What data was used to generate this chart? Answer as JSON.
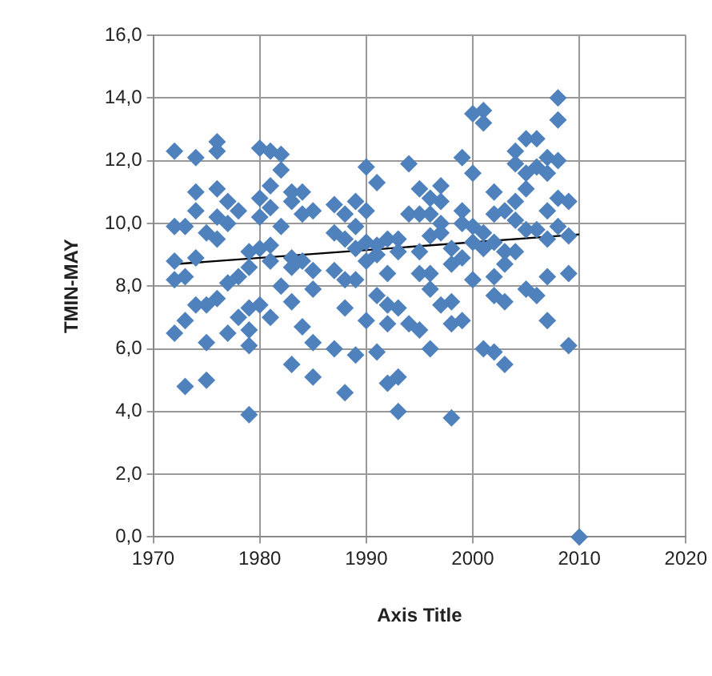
{
  "chart_data": {
    "type": "scatter",
    "xlabel": "Axis Title",
    "ylabel": "TMIN-MAY",
    "xlim": [
      1970,
      2020
    ],
    "xticks": [
      1970,
      1980,
      1990,
      2000,
      2010,
      2020
    ],
    "ylim": [
      0,
      16
    ],
    "yticks": [
      {
        "value": 0,
        "label": "0,0"
      },
      {
        "value": 2,
        "label": "2,0"
      },
      {
        "value": 4,
        "label": "4,0"
      },
      {
        "value": 6,
        "label": "6,0"
      },
      {
        "value": 8,
        "label": "8,0"
      },
      {
        "value": 10,
        "label": "10,0"
      },
      {
        "value": 12,
        "label": "12,0"
      },
      {
        "value": 14,
        "label": "14,0"
      },
      {
        "value": 16,
        "label": "16,0"
      }
    ],
    "grid": true,
    "marker": "diamond",
    "series": [
      {
        "type": "scatter",
        "color": "#4f81bd",
        "x": [
          1972,
          1972,
          1972,
          1972,
          1972,
          1973,
          1973,
          1973,
          1973,
          1974,
          1974,
          1974,
          1974,
          1974,
          1975,
          1975,
          1975,
          1975,
          1976,
          1976,
          1976,
          1976,
          1976,
          1976,
          1977,
          1977,
          1977,
          1977,
          1978,
          1978,
          1978,
          1979,
          1979,
          1979,
          1979,
          1979,
          1979,
          1980,
          1980,
          1980,
          1980,
          1980,
          1981,
          1981,
          1981,
          1981,
          1981,
          1981,
          1982,
          1982,
          1982,
          1982,
          1983,
          1983,
          1983,
          1983,
          1983,
          1983,
          1984,
          1984,
          1984,
          1984,
          1985,
          1985,
          1985,
          1985,
          1985,
          1987,
          1987,
          1987,
          1987,
          1988,
          1988,
          1988,
          1988,
          1988,
          1989,
          1989,
          1989,
          1989,
          1989,
          1990,
          1990,
          1990,
          1990,
          1990,
          1991,
          1991,
          1991,
          1991,
          1991,
          1992,
          1992,
          1992,
          1992,
          1992,
          1993,
          1993,
          1993,
          1993,
          1993,
          1994,
          1994,
          1994,
          1995,
          1995,
          1995,
          1995,
          1995,
          1996,
          1996,
          1996,
          1996,
          1996,
          1996,
          1997,
          1997,
          1997,
          1997,
          1997,
          1998,
          1998,
          1998,
          1998,
          1998,
          1999,
          1999,
          1999,
          1999,
          1999,
          2000,
          2000,
          2000,
          2000,
          2000,
          2001,
          2001,
          2001,
          2001,
          2001,
          2002,
          2002,
          2002,
          2002,
          2002,
          2002,
          2003,
          2003,
          2003,
          2003,
          2003,
          2004,
          2004,
          2004,
          2004,
          2004,
          2005,
          2005,
          2005,
          2005,
          2005,
          2006,
          2006,
          2006,
          2006,
          2007,
          2007,
          2007,
          2007,
          2007,
          2007,
          2008,
          2008,
          2008,
          2008,
          2008,
          2009,
          2009,
          2009,
          2009,
          2010
        ],
        "values": [
          12.3,
          9.9,
          8.8,
          8.2,
          6.5,
          9.9,
          8.3,
          6.9,
          4.8,
          12.1,
          11.0,
          10.4,
          8.9,
          7.4,
          9.7,
          7.4,
          6.2,
          5.0,
          12.6,
          12.3,
          11.1,
          10.2,
          9.5,
          7.6,
          10.7,
          10.0,
          8.1,
          6.5,
          10.4,
          8.3,
          7.0,
          9.1,
          8.6,
          7.3,
          6.6,
          6.1,
          3.9,
          12.4,
          10.8,
          10.2,
          9.2,
          7.4,
          12.3,
          11.2,
          10.5,
          9.3,
          8.8,
          7.0,
          12.2,
          11.7,
          9.9,
          8.0,
          11.0,
          10.7,
          8.9,
          8.6,
          7.5,
          5.5,
          11.0,
          10.3,
          8.8,
          6.7,
          10.4,
          8.5,
          7.9,
          6.2,
          5.1,
          10.6,
          9.7,
          8.5,
          6.0,
          10.3,
          9.5,
          8.2,
          7.3,
          4.6,
          10.7,
          9.9,
          9.2,
          8.2,
          5.8,
          11.8,
          10.4,
          9.4,
          8.8,
          6.9,
          11.3,
          9.3,
          9.0,
          7.7,
          5.9,
          9.5,
          8.4,
          7.4,
          6.8,
          4.9,
          9.5,
          9.1,
          7.3,
          5.1,
          4.0,
          11.9,
          10.3,
          6.8,
          11.1,
          10.3,
          9.1,
          8.4,
          6.6,
          10.8,
          10.3,
          9.6,
          8.4,
          7.9,
          6.0,
          11.2,
          10.7,
          10.0,
          9.7,
          7.4,
          9.2,
          8.7,
          7.5,
          6.8,
          3.8,
          12.1,
          10.4,
          10.0,
          8.9,
          6.9,
          13.5,
          11.6,
          9.9,
          9.4,
          8.2,
          13.6,
          13.2,
          9.7,
          9.2,
          6.0,
          11.0,
          10.3,
          9.4,
          8.3,
          7.7,
          5.9,
          10.4,
          9.1,
          8.7,
          7.5,
          5.5,
          12.3,
          11.9,
          10.7,
          10.1,
          9.1,
          12.7,
          11.6,
          11.1,
          9.8,
          7.9,
          12.7,
          11.8,
          9.8,
          7.7,
          12.1,
          11.6,
          10.4,
          9.5,
          8.3,
          6.9,
          14.0,
          13.3,
          12.0,
          10.8,
          9.9,
          10.7,
          9.6,
          8.4,
          6.1,
          0.0
        ]
      },
      {
        "type": "line",
        "color": "#000000",
        "marker": "none",
        "x": [
          1972,
          2010
        ],
        "values": [
          8.7,
          9.65
        ]
      }
    ]
  }
}
